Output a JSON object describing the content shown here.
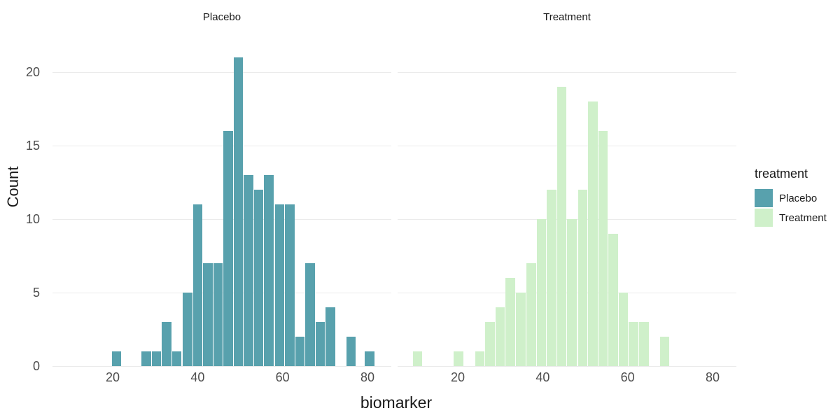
{
  "chart_data": {
    "type": "bar",
    "subtype": "faceted_histogram",
    "xlabel": "biomarker",
    "ylabel": "Count",
    "x_ticks": [
      20,
      40,
      60,
      80
    ],
    "y_ticks": [
      0,
      5,
      10,
      15,
      20
    ],
    "x_domain": [
      5.8,
      85.6
    ],
    "y_domain": [
      0,
      22.05
    ],
    "binwidth": 2.41,
    "grid": "horizontal-major-only",
    "legend": {
      "title": "treatment",
      "position": "right",
      "entries": [
        {
          "label": "Placebo",
          "color": "#58a1ad"
        },
        {
          "label": "Treatment",
          "color": "#cff0ca"
        }
      ]
    },
    "bars_format": "[bin_center, count]",
    "facets": [
      {
        "title": "Placebo",
        "color": "#58a1ad",
        "bars": [
          [
            20.9,
            1
          ],
          [
            27.9,
            1
          ],
          [
            30.3,
            1
          ],
          [
            32.7,
            3
          ],
          [
            35.1,
            1
          ],
          [
            37.6,
            5
          ],
          [
            40.0,
            11
          ],
          [
            42.4,
            7
          ],
          [
            44.8,
            7
          ],
          [
            47.2,
            16
          ],
          [
            49.6,
            21
          ],
          [
            52.0,
            13
          ],
          [
            54.4,
            12
          ],
          [
            56.8,
            13
          ],
          [
            59.3,
            11
          ],
          [
            61.7,
            11
          ],
          [
            64.1,
            2
          ],
          [
            66.5,
            7
          ],
          [
            68.9,
            3
          ],
          [
            71.3,
            4
          ],
          [
            76.1,
            2
          ],
          [
            80.5,
            1
          ]
        ]
      },
      {
        "title": "Treatment",
        "color": "#cff0ca",
        "bars": [
          [
            10.5,
            1
          ],
          [
            20.2,
            1
          ],
          [
            25.2,
            1
          ],
          [
            27.6,
            3
          ],
          [
            30.0,
            4
          ],
          [
            32.4,
            6
          ],
          [
            34.8,
            5
          ],
          [
            37.3,
            7
          ],
          [
            39.7,
            10
          ],
          [
            42.1,
            12
          ],
          [
            44.5,
            19
          ],
          [
            46.9,
            10
          ],
          [
            49.4,
            12
          ],
          [
            51.8,
            18
          ],
          [
            54.2,
            16
          ],
          [
            56.6,
            9
          ],
          [
            59.0,
            5
          ],
          [
            61.4,
            3
          ],
          [
            63.8,
            3
          ],
          [
            68.7,
            2
          ]
        ]
      }
    ]
  },
  "colors": {
    "grid": "#ebebeb",
    "tick_text": "#4d4d4d",
    "title_text": "#1a1a1a",
    "background": "#ffffff"
  }
}
